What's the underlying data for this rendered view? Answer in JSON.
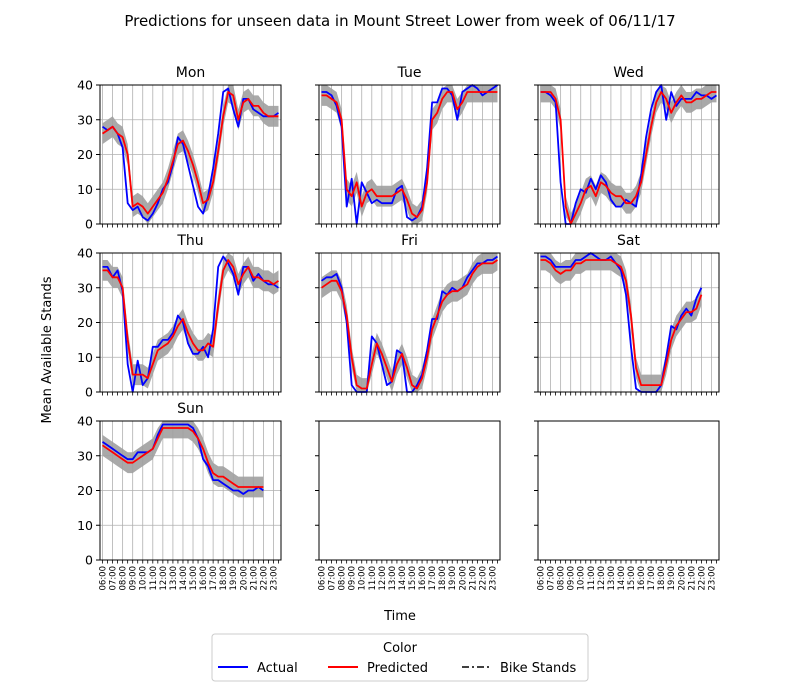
{
  "figure": {
    "title": "Predictions for unseen data in Mount Street Lower from week of 06/11/17",
    "xlabel": "Time",
    "ylabel": "Mean Available Stands"
  },
  "legend": {
    "title": "Color",
    "entries": [
      {
        "label": "Actual",
        "color": "#0000ff",
        "style": "solid"
      },
      {
        "label": "Predicted",
        "color": "#ff0000",
        "style": "solid"
      },
      {
        "label": "Bike Stands",
        "color": "#000000",
        "style": "dashdot"
      }
    ]
  },
  "colors": {
    "actual": "#0000ff",
    "predicted": "#ff0000",
    "band": "#a0a0a0",
    "grid": "#b0b0b0"
  },
  "chart_data": {
    "type": "line",
    "x": [
      "06:00",
      "06:30",
      "07:00",
      "07:30",
      "08:00",
      "08:30",
      "09:00",
      "09:30",
      "10:00",
      "10:30",
      "11:00",
      "11:30",
      "12:00",
      "12:30",
      "13:00",
      "13:30",
      "14:00",
      "14:30",
      "15:00",
      "15:30",
      "16:00",
      "16:30",
      "17:00",
      "17:30",
      "18:00",
      "18:30",
      "19:00",
      "19:30",
      "20:00",
      "20:30",
      "21:00",
      "21:30",
      "22:00",
      "22:30",
      "23:00",
      "23:30"
    ],
    "xtick_labels": [
      "06:00",
      "07:00",
      "08:00",
      "09:00",
      "10:00",
      "11:00",
      "12:00",
      "13:00",
      "14:00",
      "15:00",
      "16:00",
      "17:00",
      "18:00",
      "19:00",
      "20:00",
      "21:00",
      "22:00",
      "23:00"
    ],
    "ylim": [
      0,
      40
    ],
    "yticks": [
      0,
      10,
      20,
      30,
      40
    ],
    "grid": true,
    "legend_position": "bottom-center",
    "panels": [
      {
        "title": "Mon",
        "actual": [
          28,
          27,
          28,
          26,
          22,
          6,
          4,
          5,
          2,
          1,
          3,
          6,
          10,
          12,
          17,
          25,
          23,
          17,
          11,
          5,
          3,
          8,
          16,
          26,
          38,
          39,
          33,
          28,
          36,
          36,
          33,
          32,
          31,
          31,
          31,
          32
        ],
        "predicted": [
          26,
          27,
          28,
          26,
          25,
          20,
          5,
          6,
          5,
          3,
          5,
          7,
          9,
          13,
          18,
          23,
          24,
          21,
          17,
          12,
          6,
          7,
          12,
          21,
          31,
          38,
          37,
          30,
          35,
          36,
          34,
          34,
          32,
          31,
          31,
          31
        ]
      },
      {
        "title": "Tue",
        "actual": [
          38,
          38,
          37,
          34,
          28,
          5,
          13,
          0,
          12,
          9,
          6,
          7,
          6,
          6,
          6,
          10,
          11,
          2,
          1,
          2,
          5,
          16,
          35,
          35,
          39,
          39,
          37,
          30,
          38,
          39,
          40,
          39,
          37,
          38,
          39,
          40
        ],
        "predicted": [
          37,
          37,
          36,
          35,
          30,
          10,
          8,
          12,
          5,
          9,
          10,
          8,
          8,
          8,
          8,
          9,
          10,
          7,
          3,
          2,
          4,
          12,
          30,
          32,
          36,
          38,
          38,
          33,
          35,
          38,
          38,
          38,
          38,
          38,
          38,
          38
        ]
      },
      {
        "title": "Wed",
        "actual": [
          38,
          38,
          37,
          35,
          12,
          0,
          0,
          6,
          10,
          9,
          13,
          10,
          14,
          12,
          7,
          5,
          5,
          7,
          6,
          5,
          14,
          25,
          33,
          38,
          40,
          30,
          38,
          34,
          36,
          36,
          36,
          38,
          37,
          37,
          36,
          37
        ],
        "predicted": [
          38,
          38,
          38,
          36,
          30,
          5,
          0,
          3,
          6,
          10,
          11,
          8,
          12,
          11,
          9,
          8,
          8,
          6,
          6,
          8,
          12,
          20,
          28,
          35,
          38,
          36,
          32,
          35,
          37,
          35,
          35,
          36,
          36,
          37,
          38,
          38
        ]
      },
      {
        "title": "Thu",
        "actual": [
          36,
          36,
          33,
          35,
          29,
          8,
          0,
          9,
          2,
          4,
          13,
          13,
          15,
          15,
          17,
          22,
          20,
          14,
          11,
          11,
          13,
          10,
          18,
          36,
          39,
          37,
          34,
          28,
          36,
          36,
          32,
          34,
          32,
          31,
          31,
          30
        ],
        "predicted": [
          35,
          35,
          33,
          33,
          30,
          15,
          5,
          5,
          5,
          4,
          8,
          12,
          13,
          14,
          16,
          19,
          21,
          17,
          14,
          12,
          12,
          14,
          13,
          25,
          35,
          38,
          36,
          31,
          34,
          36,
          33,
          33,
          32,
          32,
          31,
          32
        ]
      },
      {
        "title": "Fri",
        "actual": [
          32,
          33,
          33,
          34,
          30,
          20,
          2,
          0,
          0,
          0,
          16,
          14,
          8,
          2,
          3,
          12,
          11,
          0,
          0,
          2,
          5,
          12,
          21,
          21,
          29,
          28,
          30,
          29,
          30,
          33,
          35,
          37,
          37,
          38,
          38,
          39
        ],
        "predicted": [
          30,
          31,
          32,
          32,
          29,
          22,
          10,
          2,
          1,
          1,
          8,
          14,
          11,
          7,
          3,
          8,
          11,
          7,
          2,
          1,
          4,
          10,
          18,
          22,
          26,
          28,
          29,
          29,
          30,
          31,
          34,
          36,
          37,
          37,
          37,
          38
        ]
      },
      {
        "title": "Sat",
        "actual": [
          39,
          39,
          38,
          36,
          36,
          36,
          36,
          38,
          38,
          39,
          40,
          39,
          38,
          38,
          39,
          37,
          35,
          28,
          13,
          1,
          0,
          0,
          0,
          0,
          2,
          10,
          19,
          18,
          22,
          24,
          22,
          27,
          30
        ],
        "predicted": [
          38,
          38,
          37,
          35,
          34,
          35,
          35,
          37,
          37,
          38,
          38,
          38,
          38,
          38,
          38,
          37,
          36,
          32,
          22,
          7,
          2,
          2,
          2,
          2,
          2,
          8,
          15,
          19,
          21,
          23,
          23,
          24,
          28
        ]
      },
      {
        "title": "Sun",
        "actual": [
          34,
          33,
          32,
          31,
          30,
          29,
          29,
          31,
          31,
          31,
          32,
          36,
          39,
          39,
          39,
          39,
          39,
          39,
          38,
          35,
          29,
          27,
          23,
          23,
          22,
          21,
          20,
          20,
          19,
          20,
          20,
          21,
          20
        ],
        "predicted": [
          33,
          32,
          31,
          30,
          29,
          28,
          28,
          29,
          30,
          31,
          32,
          35,
          38,
          38,
          38,
          38,
          38,
          38,
          37,
          35,
          32,
          28,
          25,
          24,
          24,
          23,
          22,
          21,
          21,
          21,
          21,
          21,
          21
        ]
      },
      {
        "title": "",
        "actual": [],
        "predicted": []
      },
      {
        "title": "",
        "actual": [],
        "predicted": []
      }
    ]
  }
}
